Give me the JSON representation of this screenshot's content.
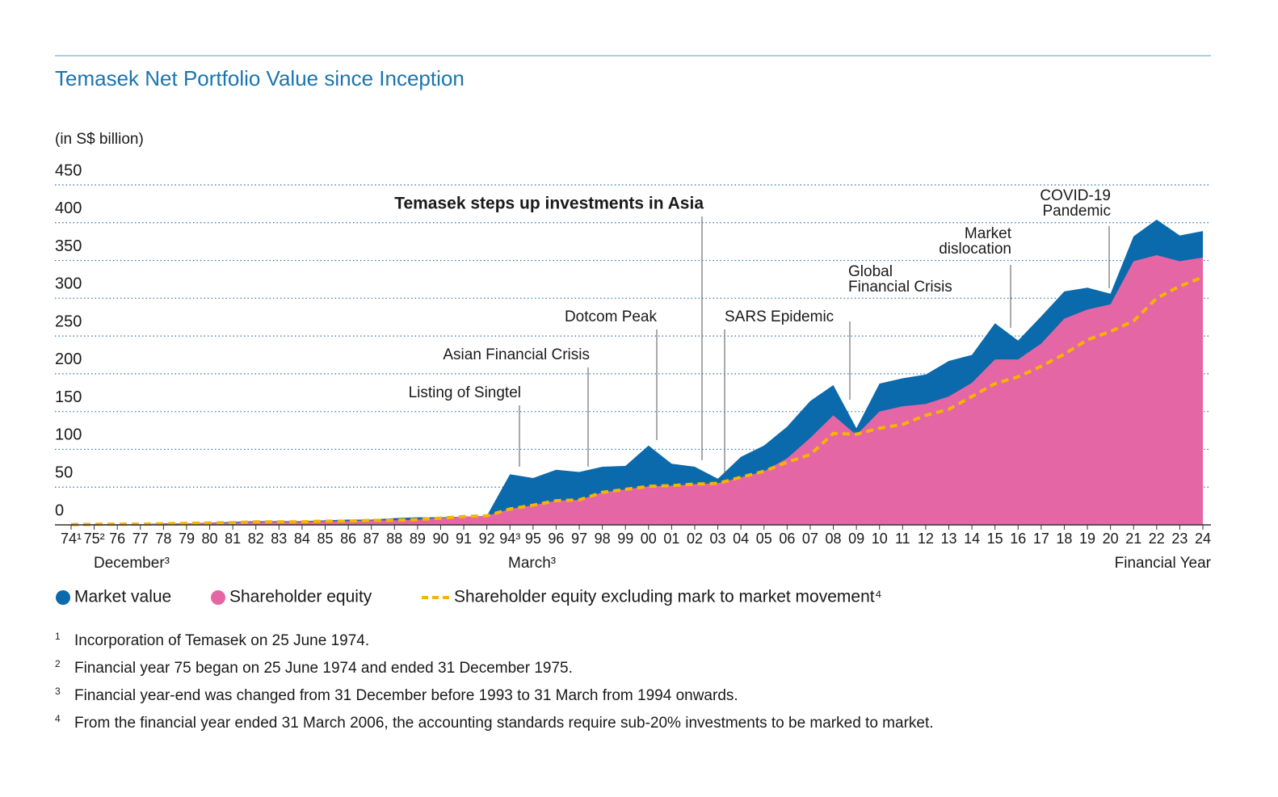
{
  "chart_data": {
    "type": "area",
    "title": "Temasek Net Portfolio Value since Inception",
    "y_label": "(in S$ billion)",
    "x_label": "Financial Year",
    "x_sublabels": [
      "December³",
      "March³"
    ],
    "categories": [
      "74¹",
      "75²",
      "76",
      "77",
      "78",
      "79",
      "80",
      "81",
      "82",
      "83",
      "84",
      "85",
      "86",
      "87",
      "88",
      "89",
      "90",
      "91",
      "92",
      "94³",
      "95",
      "96",
      "97",
      "98",
      "99",
      "00",
      "01",
      "02",
      "03",
      "04",
      "05",
      "06",
      "07",
      "08",
      "09",
      "10",
      "11",
      "12",
      "13",
      "14",
      "15",
      "16",
      "17",
      "18",
      "19",
      "20",
      "21",
      "22",
      "23",
      "24"
    ],
    "series": [
      {
        "name": "Market value",
        "color": "#0b6aab",
        "values": [
          0.35,
          1,
          1,
          1,
          2,
          2,
          3,
          4,
          5,
          5,
          5,
          6,
          7,
          7,
          9,
          10,
          10,
          11,
          12,
          67,
          62,
          73,
          70,
          77,
          78,
          105,
          81,
          77,
          61,
          90,
          105,
          130,
          164,
          185,
          128,
          187,
          194,
          199,
          217,
          225,
          267,
          244,
          276,
          309,
          314,
          306,
          382,
          404,
          383,
          389
        ]
      },
      {
        "name": "Shareholder equity",
        "color": "#e466a4",
        "values": [
          0.35,
          0.8,
          1,
          1,
          1.5,
          2,
          2.5,
          3,
          4,
          4,
          4,
          5,
          5,
          6,
          6,
          7,
          9,
          11,
          12,
          21,
          26,
          32,
          33,
          43,
          47,
          51,
          52,
          54,
          55,
          63,
          71,
          88,
          115,
          145,
          119,
          150,
          157,
          160,
          170,
          188,
          219,
          219,
          240,
          273,
          285,
          292,
          349,
          357,
          349,
          354
        ]
      },
      {
        "name": "Shareholder equity excluding mark to market movement⁴",
        "color": "#f5b400",
        "values": [
          0.35,
          0.8,
          1,
          1,
          1.5,
          2,
          2.5,
          3,
          4,
          4,
          4,
          5,
          5,
          6,
          6,
          7,
          9,
          11,
          12,
          21,
          26,
          32,
          33,
          43,
          47,
          51,
          52,
          54,
          55,
          63,
          71,
          83,
          93,
          121,
          120,
          128,
          133,
          145,
          153,
          170,
          187,
          196,
          210,
          226,
          245,
          256,
          270,
          300,
          316,
          328
        ]
      }
    ],
    "ylim": [
      0,
      450
    ],
    "yticks": [
      0,
      50,
      100,
      150,
      200,
      250,
      300,
      350,
      400,
      450
    ],
    "grid": true,
    "annotations": [
      {
        "lines": [
          "Listing of Singtel"
        ]
      },
      {
        "lines": [
          "Asian Financial Crisis"
        ]
      },
      {
        "lines": [
          "Dotcom Peak"
        ]
      },
      {
        "lines": [
          "Temasek steps up investments in Asia"
        ]
      },
      {
        "lines": [
          "SARS Epidemic"
        ]
      },
      {
        "lines": [
          "Global",
          "Financial Crisis"
        ]
      },
      {
        "lines": [
          "Market",
          "dislocation"
        ]
      },
      {
        "lines": [
          "COVID-19",
          "Pandemic"
        ]
      }
    ],
    "footnotes": [
      {
        "mark": "1",
        "text": "Incorporation of Temasek on 25 June 1974."
      },
      {
        "mark": "2",
        "text": "Financial year 75 began on 25 June 1974 and ended 31 December 1975."
      },
      {
        "mark": "3",
        "text": "Financial year-end was changed from 31 December before 1993 to 31 March from 1994 onwards."
      },
      {
        "mark": "4",
        "text": "From the financial year ended 31 March 2006, the accounting standards require sub-20% investments to be marked to market."
      }
    ]
  }
}
